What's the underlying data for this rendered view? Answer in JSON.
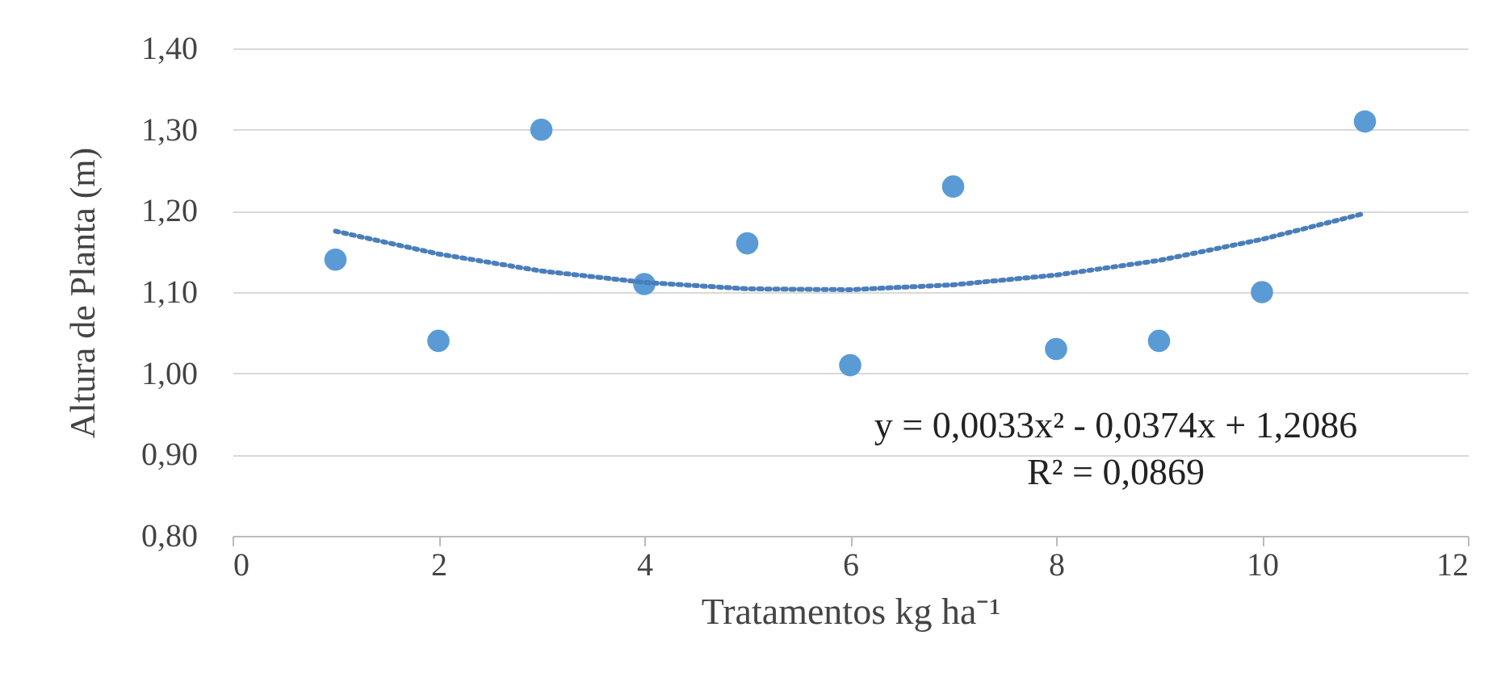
{
  "chart_data": {
    "type": "scatter",
    "xlabel": "Tratamentos kg ha⁻¹",
    "ylabel": "Altura de Planta (m)",
    "xlim": [
      0,
      12
    ],
    "xticks": [
      0,
      2,
      4,
      6,
      8,
      10,
      12
    ],
    "ylim": [
      0.8,
      1.4
    ],
    "yticks": [
      {
        "value": 0.8,
        "label": "0,80"
      },
      {
        "value": 0.9,
        "label": "0,90"
      },
      {
        "value": 1.0,
        "label": "1,00"
      },
      {
        "value": 1.1,
        "label": "1,10"
      },
      {
        "value": 1.2,
        "label": "1,20"
      },
      {
        "value": 1.3,
        "label": "1,30"
      },
      {
        "value": 1.4,
        "label": "1,40"
      }
    ],
    "grid": "y",
    "legend": false,
    "marker": "circle",
    "series": [
      {
        "color": "#5b9bd5",
        "x": [
          1,
          2,
          3,
          4,
          5,
          6,
          7,
          8,
          9,
          10,
          11
        ],
        "values": [
          1.14,
          1.04,
          1.3,
          1.11,
          1.16,
          1.01,
          1.23,
          1.03,
          1.04,
          1.1,
          1.31
        ]
      },
      {
        "type": "line",
        "color": "#4a7ebb",
        "line_style": "dotted",
        "marker": "none",
        "x": [
          1,
          2,
          3,
          4,
          5,
          6,
          7,
          8,
          9,
          10,
          11
        ],
        "values": [
          1.175,
          1.147,
          1.126,
          1.112,
          1.104,
          1.103,
          1.109,
          1.121,
          1.139,
          1.165,
          1.197
        ]
      }
    ],
    "annotations": [
      "y = 0,0033x² - 0,0374x + 1,2086",
      "R² = 0,0869"
    ]
  }
}
